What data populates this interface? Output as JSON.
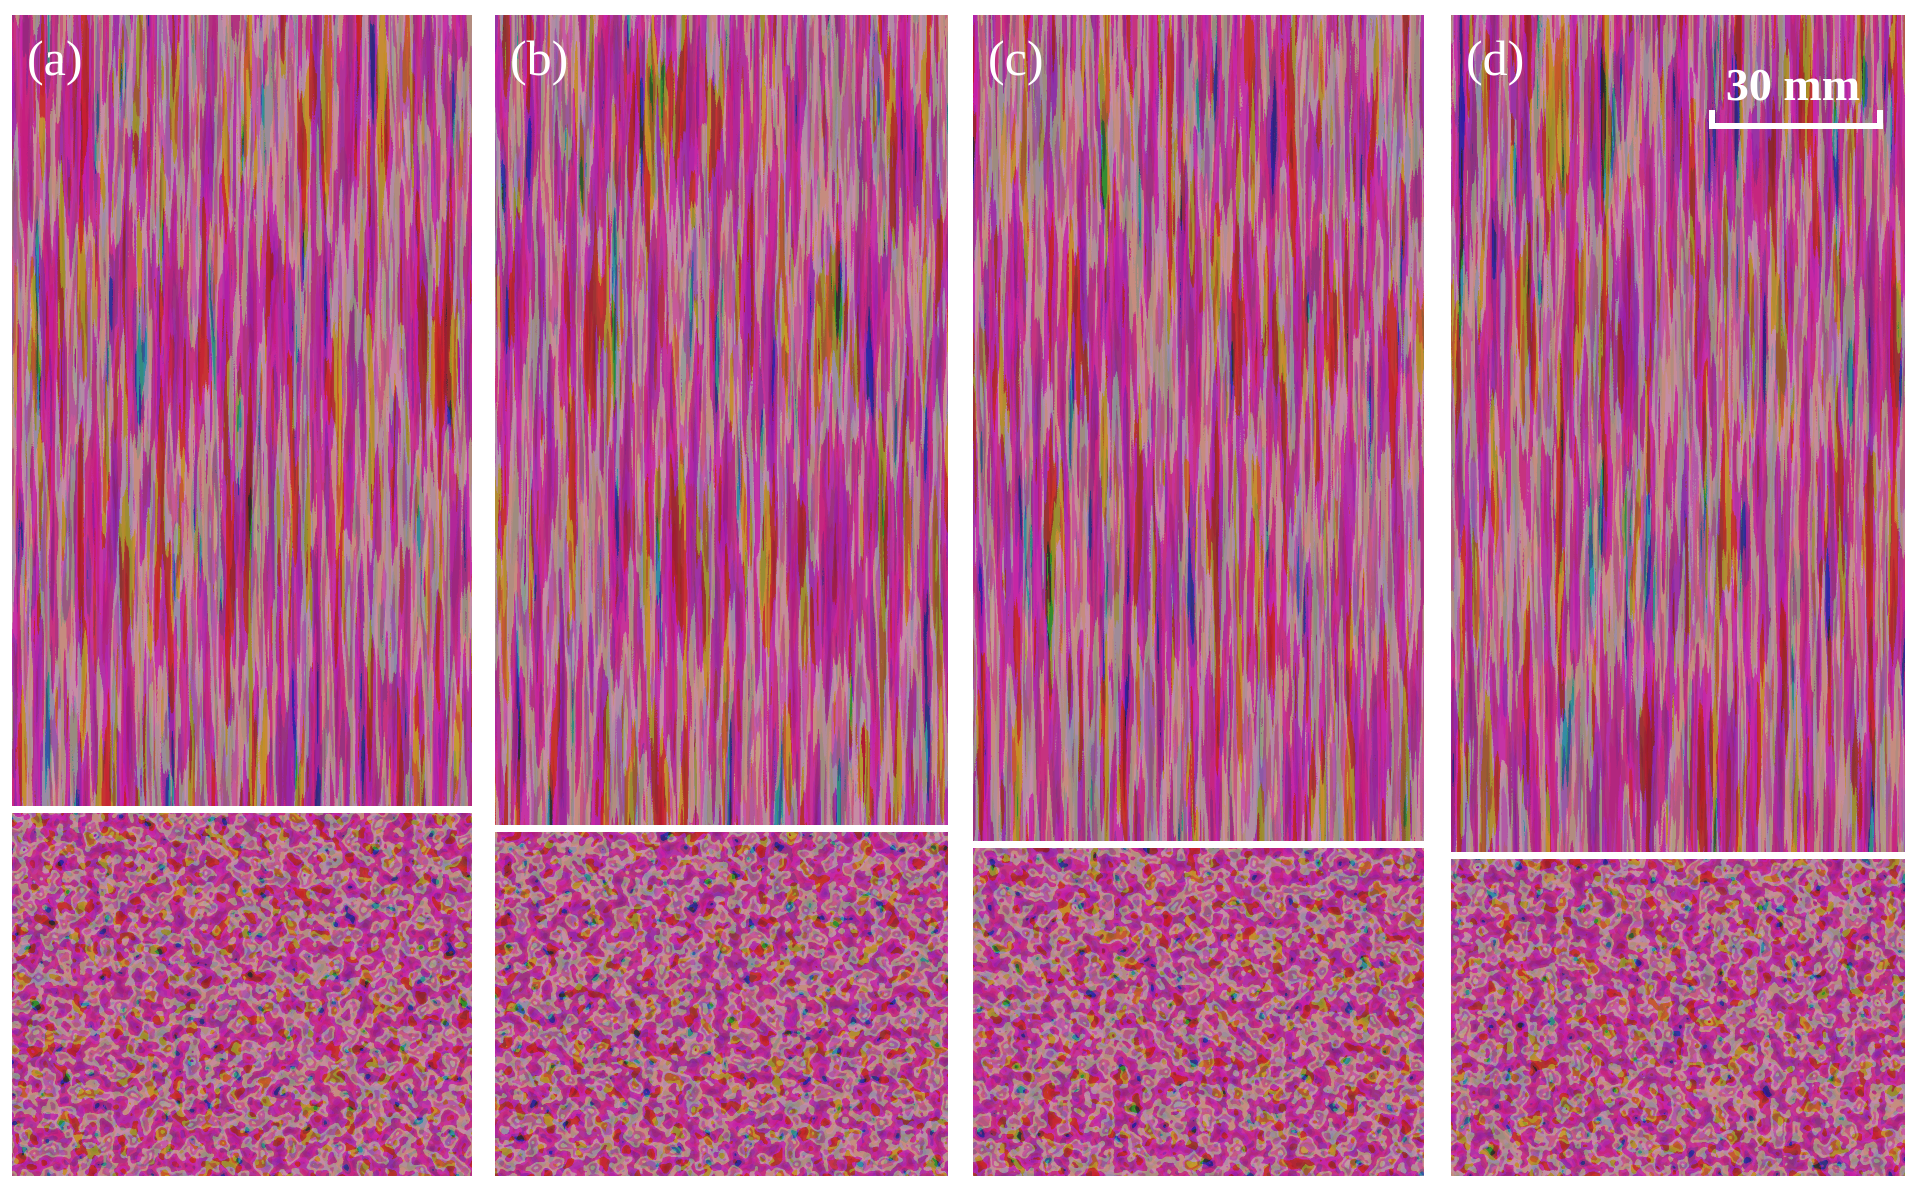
{
  "panels": [
    {
      "label": "(a)"
    },
    {
      "label": "(b)"
    },
    {
      "label": "(c)"
    },
    {
      "label": "(d)"
    }
  ],
  "scale_bar": {
    "label": "30 mm"
  }
}
